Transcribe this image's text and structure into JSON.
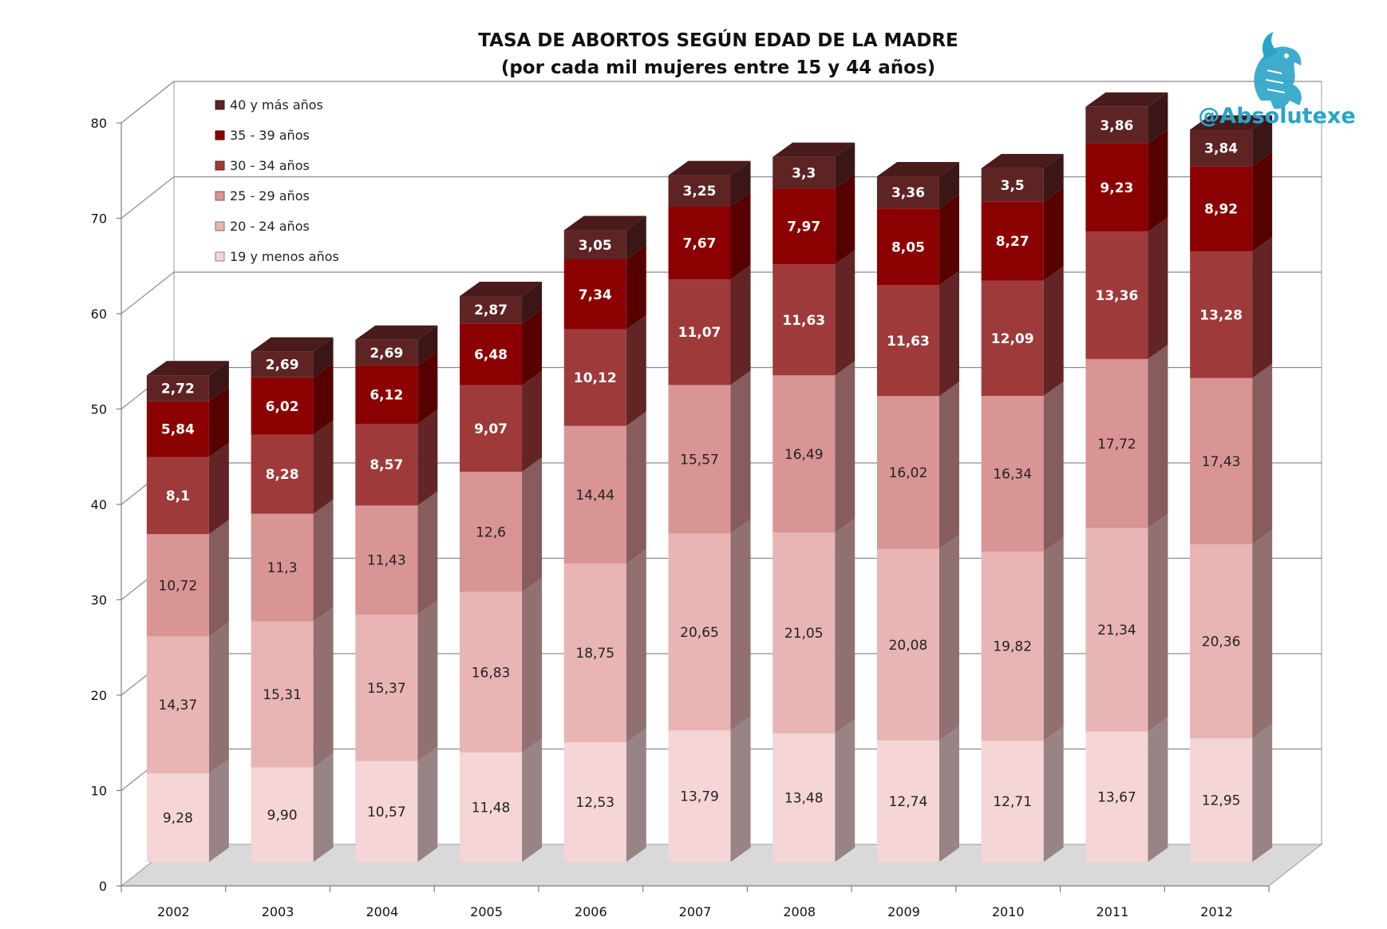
{
  "chart_data": {
    "type": "bar",
    "stacked": true,
    "title": "TASA DE ABORTOS SEGÚN EDAD DE LA MADRE",
    "subtitle": "(por cada mil mujeres entre 15 y 44 años)",
    "categories": [
      "2002",
      "2003",
      "2004",
      "2005",
      "2006",
      "2007",
      "2008",
      "2009",
      "2010",
      "2011",
      "2012"
    ],
    "series": [
      {
        "name": "19 y menos años",
        "color": "#f5d5d5",
        "values": [
          9.28,
          9.9,
          10.57,
          11.48,
          12.53,
          13.79,
          13.48,
          12.74,
          12.71,
          13.67,
          12.95
        ],
        "labels": [
          "9,28",
          "9,90",
          "10,57",
          "11,48",
          "12,53",
          "13,79",
          "13,48",
          "12,74",
          "12,71",
          "13,67",
          "12,95"
        ]
      },
      {
        "name": "20 - 24 años",
        "color": "#e8b4b4",
        "values": [
          14.37,
          15.31,
          15.37,
          16.83,
          18.75,
          20.65,
          21.05,
          20.08,
          19.82,
          21.34,
          20.36
        ],
        "labels": [
          "14,37",
          "15,31",
          "15,37",
          "16,83",
          "18,75",
          "20,65",
          "21,05",
          "20,08",
          "19,82",
          "21,34",
          "20,36"
        ]
      },
      {
        "name": "25 - 29 años",
        "color": "#d99494",
        "values": [
          10.72,
          11.3,
          11.43,
          12.6,
          14.44,
          15.57,
          16.49,
          16.02,
          16.34,
          17.72,
          17.43
        ],
        "labels": [
          "10,72",
          "11,3",
          "11,43",
          "12,6",
          "14,44",
          "15,57",
          "16,49",
          "16,02",
          "16,34",
          "17,72",
          "17,43"
        ]
      },
      {
        "name": "30 - 34 años",
        "color": "#9e3a3a",
        "values": [
          8.1,
          8.28,
          8.57,
          9.07,
          10.12,
          11.07,
          11.63,
          11.63,
          12.09,
          13.36,
          13.28
        ],
        "labels": [
          "8,1",
          "8,28",
          "8,57",
          "9,07",
          "10,12",
          "11,07",
          "11,63",
          "11,63",
          "12,09",
          "13,36",
          "13,28"
        ]
      },
      {
        "name": "35 - 39 años",
        "color": "#8b0000",
        "values": [
          5.84,
          6.02,
          6.12,
          6.48,
          7.34,
          7.67,
          7.97,
          8.05,
          8.27,
          9.23,
          8.92
        ],
        "labels": [
          "5,84",
          "6,02",
          "6,12",
          "6,48",
          "7,34",
          "7,67",
          "7,97",
          "8,05",
          "8,27",
          "9,23",
          "8,92"
        ]
      },
      {
        "name": "40 y más años",
        "color": "#5e2323",
        "values": [
          2.72,
          2.69,
          2.69,
          2.87,
          3.05,
          3.25,
          3.3,
          3.36,
          3.5,
          3.86,
          3.84
        ],
        "labels": [
          "2,72",
          "2,69",
          "2,69",
          "2,87",
          "3,05",
          "3,25",
          "3,3",
          "3,36",
          "3,5",
          "3,86",
          "3,84"
        ]
      }
    ],
    "y_ticks": [
      "0",
      "10",
      "20",
      "30",
      "40",
      "50",
      "60",
      "70",
      "80"
    ],
    "ylim": [
      0,
      80
    ],
    "grid": true,
    "legend_position": "top-left",
    "watermark": "@Absolutexe",
    "logo_icon": "griffin-icon"
  }
}
